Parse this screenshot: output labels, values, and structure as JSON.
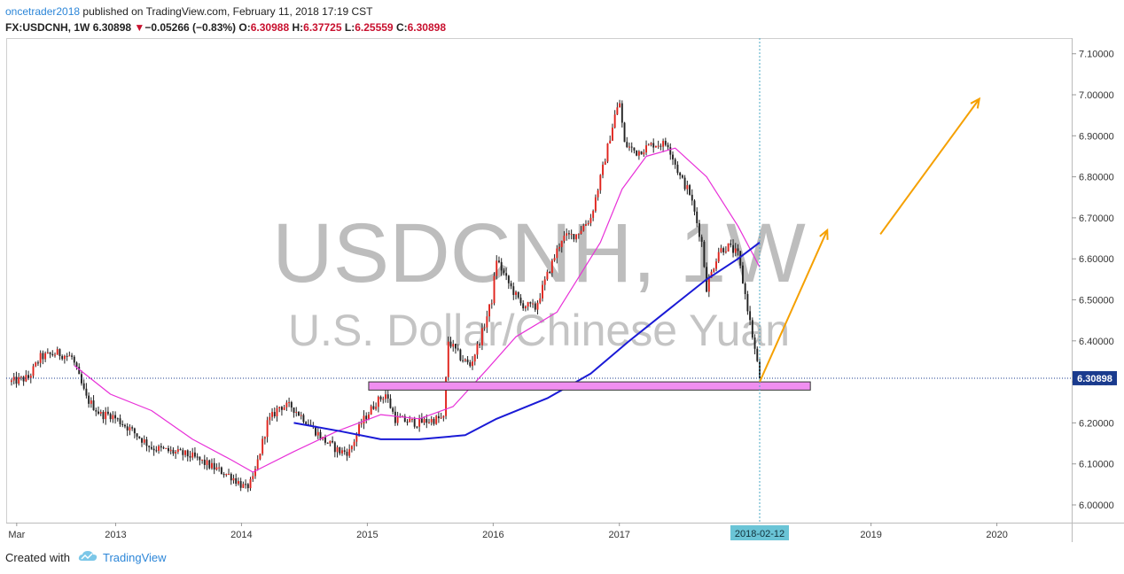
{
  "header": {
    "author": "oncetrader2018",
    "published_text": " published on TradingView.com, February 11, 2018 17:19 CST",
    "symbol_line": "FX:USDCNH, 1W",
    "last": "6.30898",
    "change_arrow": "▼",
    "change": "−0.05266 (−0.83%)",
    "open_label": "O:",
    "open": "6.30988",
    "high_label": "H:",
    "high": "6.37725",
    "low_label": "L:",
    "low": "6.25559",
    "close_label": "C:",
    "close": "6.30898"
  },
  "watermark": {
    "symbol": "USDCNH, 1W",
    "description": "U.S. Dollar/Chinese Yuan"
  },
  "footer": {
    "created_with": "Created with",
    "brand": "TradingView"
  },
  "colors": {
    "up": "#e0231c",
    "down": "#222222",
    "ma_fast": "#e830d8",
    "ma_slow": "#1a1ad6",
    "support_zone": "#f08ef0",
    "arrow": "#f5a000",
    "price_tag": "#1a3b8e",
    "date_tag": "#6ac4d6"
  },
  "chart_data": {
    "type": "candlestick",
    "timeframe": "1W",
    "y_axis": {
      "range": [
        5.97,
        7.14
      ],
      "ticks": [
        7.1,
        7.0,
        6.9,
        6.8,
        6.7,
        6.6,
        6.5,
        6.4,
        6.3,
        6.2,
        6.1,
        6.0
      ],
      "tick_labels": [
        "7.10000",
        "7.00000",
        "6.90000",
        "6.80000",
        "6.70000",
        "6.60000",
        "6.50000",
        "6.40000",
        "6.30000",
        "6.20000",
        "6.10000",
        "6.00000"
      ]
    },
    "x_axis": {
      "labels": [
        "Mar",
        "2013",
        "2014",
        "2015",
        "2016",
        "2017",
        "2018-02-12",
        "2019",
        "2020"
      ]
    },
    "current_price": 6.30898,
    "current_price_label": "6.30898",
    "cursor_date": "2018-02-12",
    "anchors": [
      [
        "2012-03-05",
        6.3
      ],
      [
        "2012-04-23",
        6.31
      ],
      [
        "2012-05-28",
        6.36
      ],
      [
        "2012-07-16",
        6.37
      ],
      [
        "2012-08-27",
        6.36
      ],
      [
        "2012-10-08",
        6.26
      ],
      [
        "2012-11-19",
        6.22
      ],
      [
        "2012-12-17",
        6.22
      ],
      [
        "2013-02-04",
        6.19
      ],
      [
        "2013-04-15",
        6.14
      ],
      [
        "2013-06-10",
        6.13
      ],
      [
        "2013-08-05",
        6.12
      ],
      [
        "2013-10-14",
        6.09
      ],
      [
        "2013-12-02",
        6.07
      ],
      [
        "2014-01-13",
        6.04
      ],
      [
        "2014-02-03",
        6.06
      ],
      [
        "2014-03-17",
        6.2
      ],
      [
        "2014-04-21",
        6.24
      ],
      [
        "2014-05-26",
        6.24
      ],
      [
        "2014-07-14",
        6.2
      ],
      [
        "2014-08-25",
        6.16
      ],
      [
        "2014-10-13",
        6.13
      ],
      [
        "2014-11-10",
        6.13
      ],
      [
        "2014-12-15",
        6.2
      ],
      [
        "2015-01-26",
        6.25
      ],
      [
        "2015-02-23",
        6.27
      ],
      [
        "2015-03-23",
        6.21
      ],
      [
        "2015-05-25",
        6.2
      ],
      [
        "2015-07-27",
        6.21
      ],
      [
        "2015-08-10",
        6.21
      ],
      [
        "2015-08-24",
        6.4
      ],
      [
        "2015-09-28",
        6.36
      ],
      [
        "2015-10-26",
        6.34
      ],
      [
        "2015-11-23",
        6.4
      ],
      [
        "2015-12-28",
        6.5
      ],
      [
        "2016-01-11",
        6.6
      ],
      [
        "2016-02-08",
        6.55
      ],
      [
        "2016-03-21",
        6.49
      ],
      [
        "2016-05-02",
        6.48
      ],
      [
        "2016-06-06",
        6.56
      ],
      [
        "2016-07-18",
        6.65
      ],
      [
        "2016-08-29",
        6.66
      ],
      [
        "2016-10-10",
        6.7
      ],
      [
        "2016-11-14",
        6.82
      ],
      [
        "2016-12-19",
        6.95
      ],
      [
        "2017-01-02",
        6.98
      ],
      [
        "2017-01-16",
        6.88
      ],
      [
        "2017-02-20",
        6.86
      ],
      [
        "2017-04-10",
        6.88
      ],
      [
        "2017-05-22",
        6.88
      ],
      [
        "2017-06-26",
        6.8
      ],
      [
        "2017-07-24",
        6.76
      ],
      [
        "2017-08-28",
        6.64
      ],
      [
        "2017-09-11",
        6.53
      ],
      [
        "2017-10-16",
        6.62
      ],
      [
        "2017-11-13",
        6.63
      ],
      [
        "2017-12-11",
        6.61
      ],
      [
        "2018-01-08",
        6.48
      ],
      [
        "2018-02-12",
        6.31
      ]
    ],
    "moving_average_fast": [
      [
        "2012-09-03",
        6.34
      ],
      [
        "2012-12-17",
        6.27
      ],
      [
        "2013-04-15",
        6.23
      ],
      [
        "2013-08-12",
        6.16
      ],
      [
        "2013-12-02",
        6.11
      ],
      [
        "2014-02-03",
        6.08
      ],
      [
        "2014-06-02",
        6.13
      ],
      [
        "2014-10-06",
        6.18
      ],
      [
        "2015-02-09",
        6.22
      ],
      [
        "2015-06-01",
        6.21
      ],
      [
        "2015-09-07",
        6.24
      ],
      [
        "2015-12-14",
        6.33
      ],
      [
        "2016-03-07",
        6.41
      ],
      [
        "2016-07-04",
        6.47
      ],
      [
        "2016-11-07",
        6.64
      ],
      [
        "2017-01-09",
        6.77
      ],
      [
        "2017-03-20",
        6.85
      ],
      [
        "2017-06-12",
        6.87
      ],
      [
        "2017-09-11",
        6.8
      ],
      [
        "2017-12-11",
        6.68
      ],
      [
        "2018-02-12",
        6.58
      ]
    ],
    "moving_average_slow": [
      [
        "2014-06-02",
        6.2
      ],
      [
        "2014-10-13",
        6.18
      ],
      [
        "2015-02-09",
        6.16
      ],
      [
        "2015-06-01",
        6.16
      ],
      [
        "2015-10-12",
        6.17
      ],
      [
        "2016-01-11",
        6.21
      ],
      [
        "2016-06-06",
        6.26
      ],
      [
        "2016-10-10",
        6.32
      ],
      [
        "2017-01-30",
        6.4
      ],
      [
        "2017-05-29",
        6.48
      ],
      [
        "2017-09-11",
        6.55
      ],
      [
        "2017-12-11",
        6.6
      ],
      [
        "2018-02-12",
        6.64
      ]
    ],
    "support_zone": {
      "from": "2015-01-05",
      "to": "2018-07-09",
      "low": 6.28,
      "high": 6.3
    },
    "projection_arrows": [
      {
        "from": [
          "2018-02-12",
          6.3
        ],
        "to": [
          "2018-08-27",
          6.67
        ]
      },
      {
        "from": [
          "2019-01-28",
          6.66
        ],
        "to": [
          "2019-11-11",
          6.99
        ]
      }
    ]
  }
}
